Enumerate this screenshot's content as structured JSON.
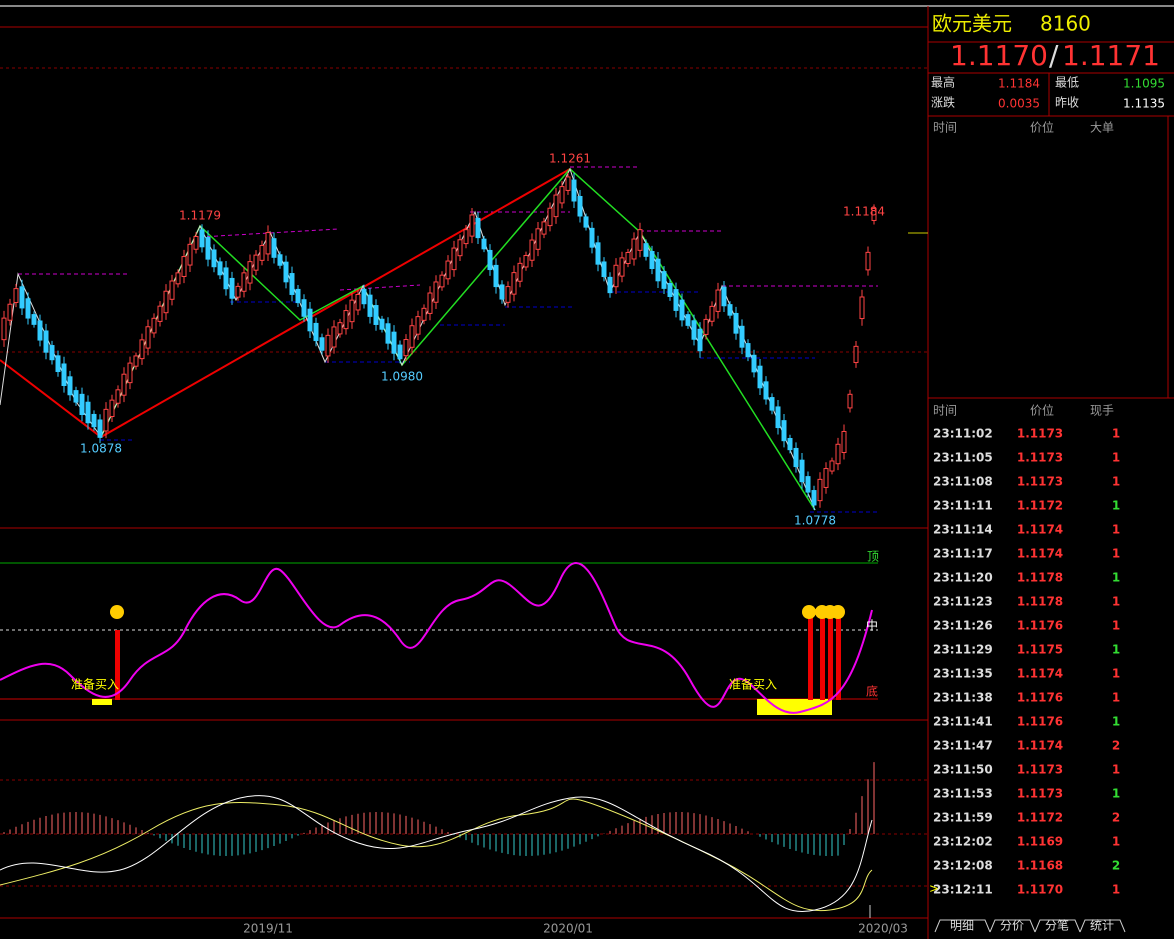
{
  "quote": {
    "name": "欧元美元",
    "code": "8160",
    "bid": "1.1170",
    "sep": "/",
    "ask": "1.1171"
  },
  "stats": [
    {
      "label": "最高",
      "value": "1.1184"
    },
    {
      "label": "最低",
      "value": "1.1095"
    },
    {
      "label": "涨跌",
      "value": "0.0035"
    },
    {
      "label": "昨收",
      "value": "1.1135"
    }
  ],
  "big_orders_header": [
    "时间",
    "价位",
    "大单"
  ],
  "ticks_header": [
    "时间",
    "价位",
    "现手"
  ],
  "ticks": [
    [
      "23:11:02",
      "1.1173",
      "1"
    ],
    [
      "23:11:05",
      "1.1173",
      "1"
    ],
    [
      "23:11:08",
      "1.1173",
      "1"
    ],
    [
      "23:11:11",
      "1.1172",
      "1"
    ],
    [
      "23:11:14",
      "1.1174",
      "1"
    ],
    [
      "23:11:17",
      "1.1174",
      "1"
    ],
    [
      "23:11:20",
      "1.1178",
      "1"
    ],
    [
      "23:11:23",
      "1.1178",
      "1"
    ],
    [
      "23:11:26",
      "1.1176",
      "1"
    ],
    [
      "23:11:29",
      "1.1175",
      "1"
    ],
    [
      "23:11:35",
      "1.1174",
      "1"
    ],
    [
      "23:11:38",
      "1.1176",
      "1"
    ],
    [
      "23:11:41",
      "1.1176",
      "1"
    ],
    [
      "23:11:47",
      "1.1174",
      "2"
    ],
    [
      "23:11:50",
      "1.1173",
      "1"
    ],
    [
      "23:11:53",
      "1.1173",
      "1"
    ],
    [
      "23:11:59",
      "1.1172",
      "2"
    ],
    [
      "23:12:02",
      "1.1169",
      "1"
    ],
    [
      "23:12:08",
      "1.1168",
      "2"
    ],
    [
      "23:12:11",
      "1.1170",
      "1"
    ]
  ],
  "cursor": ">",
  "tabs": [
    "明细",
    "分价",
    "分笔",
    "统计"
  ],
  "chart": {
    "high_labels": [
      "1.1179",
      "1.1261",
      "1.1184"
    ],
    "low_labels": [
      "1.0878",
      "1.0980",
      "1.0778"
    ],
    "level_labels": [
      "顶",
      "中",
      "底"
    ],
    "signal_labels": [
      "准备买入",
      "准备买入"
    ],
    "date_labels": [
      "2019/11",
      "2020/01",
      "2020/03"
    ]
  }
}
